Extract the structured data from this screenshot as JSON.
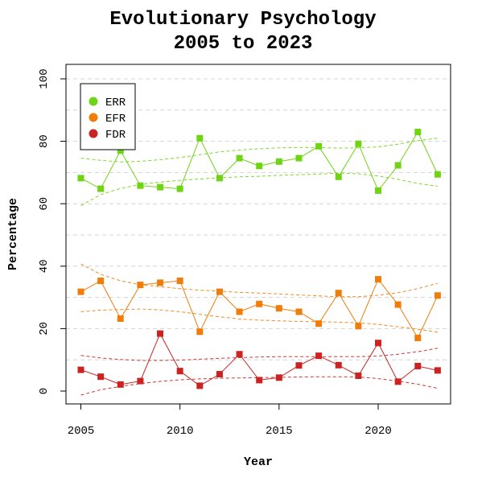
{
  "chart_data": {
    "type": "line",
    "title": "Evolutionary Psychology",
    "subtitle": "2005 to 2023",
    "xlabel": "Year",
    "ylabel": "Percentage",
    "xlim": [
      2005,
      2023
    ],
    "ylim": [
      0,
      100
    ],
    "x_ticks": [
      "2005",
      "2010",
      "2015",
      "2020"
    ],
    "y_ticks": [
      "0",
      "20",
      "40",
      "60",
      "80",
      "100"
    ],
    "grid": "horizontal dashed",
    "legend_position": "top-left",
    "x": [
      2005,
      2006,
      2007,
      2008,
      2009,
      2010,
      2011,
      2012,
      2013,
      2014,
      2015,
      2016,
      2017,
      2018,
      2019,
      2020,
      2021,
      2022,
      2023
    ],
    "series": [
      {
        "name": "ERR",
        "color": "#6fd414",
        "values": [
          68.2,
          64.8,
          77.0,
          65.8,
          65.3,
          64.8,
          81.0,
          68.2,
          74.6,
          72.1,
          73.5,
          74.6,
          78.4,
          68.6,
          79.2,
          64.2,
          72.3,
          83.0,
          69.4
        ],
        "ci_upper": [
          74.6,
          73.9,
          73.4,
          73.6,
          74.1,
          74.8,
          75.7,
          76.6,
          77.2,
          77.6,
          77.9,
          78.0,
          78.0,
          77.8,
          77.9,
          78.2,
          79.1,
          80.2,
          81.0
        ],
        "ci_lower": [
          59.4,
          62.9,
          64.9,
          66.2,
          66.9,
          67.5,
          67.9,
          68.3,
          68.6,
          68.8,
          69.1,
          69.3,
          69.5,
          69.8,
          69.6,
          68.9,
          67.8,
          66.5,
          65.6
        ]
      },
      {
        "name": "EFR",
        "color": "#f07d0a",
        "values": [
          31.8,
          35.3,
          23.2,
          34.0,
          34.7,
          35.3,
          19.0,
          31.8,
          25.4,
          27.9,
          26.5,
          25.4,
          21.6,
          31.4,
          20.8,
          35.8,
          27.7,
          17.0,
          30.6
        ],
        "ci_upper": [
          40.7,
          37.4,
          35.3,
          34.1,
          33.4,
          32.8,
          32.3,
          32.0,
          31.6,
          31.4,
          31.1,
          30.8,
          30.5,
          30.2,
          30.2,
          30.7,
          31.5,
          32.8,
          34.5
        ],
        "ci_lower": [
          25.4,
          25.9,
          26.1,
          26.3,
          26.0,
          25.4,
          24.6,
          23.8,
          23.1,
          22.7,
          22.5,
          22.3,
          22.2,
          22.1,
          21.8,
          21.4,
          20.6,
          19.8,
          18.9
        ]
      },
      {
        "name": "FDR",
        "color": "#cc2222",
        "values": [
          6.8,
          4.6,
          2.1,
          3.2,
          18.4,
          6.4,
          1.7,
          5.4,
          11.8,
          3.5,
          4.3,
          8.2,
          11.3,
          8.3,
          4.9,
          15.4,
          3.0,
          8.0,
          6.6
        ],
        "ci_upper": [
          11.4,
          10.6,
          10.1,
          9.8,
          9.8,
          9.9,
          10.2,
          10.5,
          10.7,
          10.9,
          11.0,
          11.0,
          11.0,
          11.0,
          11.0,
          11.2,
          11.8,
          12.6,
          13.7
        ],
        "ci_lower": [
          -1.3,
          0.4,
          1.5,
          2.4,
          3.1,
          3.6,
          3.9,
          4.1,
          4.2,
          4.3,
          4.4,
          4.5,
          4.6,
          4.6,
          4.5,
          4.0,
          3.2,
          2.2,
          0.9
        ]
      }
    ]
  }
}
